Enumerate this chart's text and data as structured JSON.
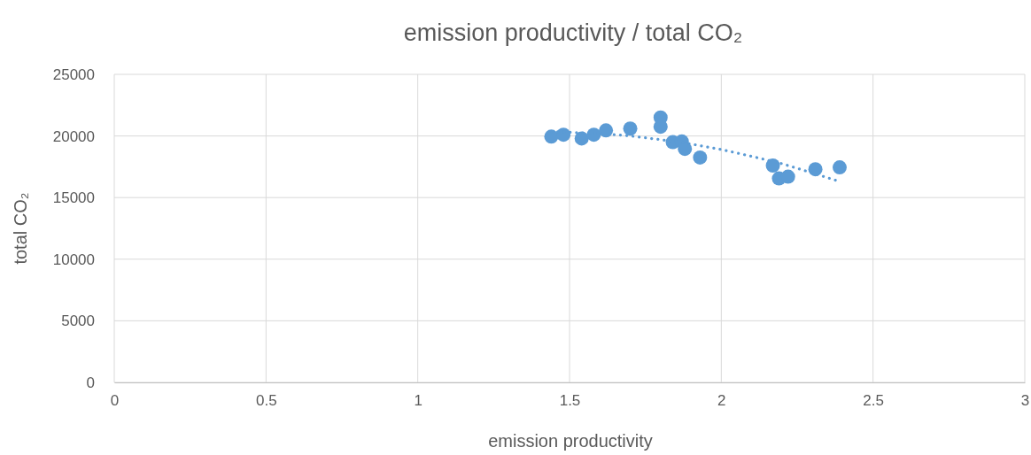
{
  "chart_data": {
    "type": "scatter",
    "title": "emission productivity / total CO₂",
    "xlabel": "emission productivity",
    "ylabel": "total CO₂",
    "xlim": [
      0,
      3
    ],
    "xticks": [
      0,
      0.5,
      1,
      1.5,
      2,
      2.5,
      3
    ],
    "ylim": [
      0,
      25000
    ],
    "yticks": [
      0,
      5000,
      10000,
      15000,
      20000,
      25000
    ],
    "grid": true,
    "marker": "circle",
    "series": [
      {
        "color": "#5b9bd5",
        "x": [
          1.44,
          1.48,
          1.54,
          1.58,
          1.62,
          1.7,
          1.8,
          1.8,
          1.84,
          1.87,
          1.88,
          1.93,
          2.17,
          2.19,
          2.22,
          2.31,
          2.39
        ],
        "values": [
          19950,
          20100,
          19800,
          20100,
          20450,
          20600,
          21500,
          20750,
          19500,
          19550,
          18950,
          18250,
          17600,
          16550,
          16700,
          17300,
          17450
        ]
      },
      {
        "type": "line",
        "color": "#5b9bd5",
        "line_style": "dotted",
        "marker": "none",
        "x": [
          1.44,
          1.5,
          1.6,
          1.7,
          1.8,
          1.9,
          2.0,
          2.1,
          2.2,
          2.3,
          2.39
        ],
        "values": [
          20350,
          20300,
          20200,
          20000,
          19700,
          19350,
          18900,
          18350,
          17750,
          17000,
          16300
        ]
      }
    ]
  }
}
